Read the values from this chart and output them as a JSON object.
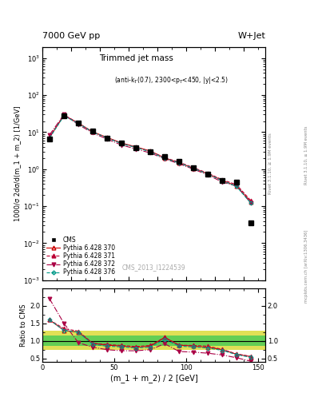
{
  "title_top": "7000 GeV pp",
  "title_right": "W+Jet",
  "ylabel_main": "1000/σ 2dσ/d(m_1 + m_2) [1/GeV]",
  "ylabel_ratio": "Ratio to CMS",
  "xlabel": "(m_1 + m_2) / 2 [GeV]",
  "watermark": "CMS_2013_I1224539",
  "rivet_label": "Rivet 3.1.10, ≥ 1.9M events",
  "mcplots_label": "mcplots.cern.ch [arXiv:1306.3436]",
  "xlim": [
    0,
    155
  ],
  "ylim_main": [
    0.001,
    2000
  ],
  "ylim_ratio": [
    0.4,
    2.5
  ],
  "x_cms": [
    5,
    15,
    25,
    35,
    45,
    55,
    65,
    75,
    85,
    95,
    105,
    115,
    125,
    135,
    145
  ],
  "y_cms": [
    6.5,
    28.0,
    18.0,
    10.5,
    7.0,
    5.0,
    3.8,
    3.0,
    2.2,
    1.6,
    1.1,
    0.75,
    0.5,
    0.45,
    0.035
  ],
  "x_p370": [
    5,
    15,
    25,
    35,
    45,
    55,
    65,
    75,
    85,
    95,
    105,
    115,
    125,
    135,
    145
  ],
  "y_p370": [
    7.2,
    28.5,
    17.5,
    10.2,
    7.2,
    5.1,
    4.0,
    3.1,
    2.0,
    1.5,
    1.05,
    0.75,
    0.5,
    0.35,
    0.13
  ],
  "ratio_p370": [
    1.6,
    1.3,
    1.25,
    0.93,
    0.88,
    0.85,
    0.82,
    0.85,
    1.1,
    0.88,
    0.85,
    0.82,
    0.75,
    0.62,
    0.55
  ],
  "x_p371": [
    5,
    15,
    25,
    35,
    45,
    55,
    65,
    75,
    85,
    95,
    105,
    115,
    125,
    135,
    145
  ],
  "y_p371": [
    7.5,
    29.0,
    17.8,
    10.0,
    7.1,
    5.0,
    3.9,
    3.05,
    2.05,
    1.55,
    1.1,
    0.78,
    0.52,
    0.38,
    0.14
  ],
  "ratio_p371": [
    1.6,
    1.35,
    1.28,
    0.93,
    0.9,
    0.87,
    0.84,
    0.87,
    1.1,
    0.88,
    0.87,
    0.85,
    0.76,
    0.63,
    0.56
  ],
  "x_p372": [
    5,
    15,
    25,
    35,
    45,
    55,
    65,
    75,
    85,
    95,
    105,
    115,
    125,
    135,
    145
  ],
  "y_p372": [
    8.5,
    30.0,
    16.0,
    9.5,
    6.5,
    4.5,
    3.5,
    2.75,
    1.9,
    1.4,
    1.0,
    0.7,
    0.45,
    0.35,
    0.12
  ],
  "ratio_p372": [
    2.2,
    1.5,
    0.95,
    0.82,
    0.75,
    0.72,
    0.72,
    0.75,
    0.92,
    0.7,
    0.68,
    0.65,
    0.6,
    0.52,
    0.42
  ],
  "x_p376": [
    5,
    15,
    25,
    35,
    45,
    55,
    65,
    75,
    85,
    95,
    105,
    115,
    125,
    135,
    145
  ],
  "y_p376": [
    7.0,
    27.5,
    17.2,
    10.0,
    7.0,
    4.9,
    3.85,
    2.95,
    1.95,
    1.48,
    1.05,
    0.74,
    0.49,
    0.34,
    0.12
  ],
  "ratio_p376": [
    1.6,
    1.3,
    1.25,
    0.9,
    0.85,
    0.83,
    0.8,
    0.82,
    1.05,
    0.85,
    0.83,
    0.8,
    0.73,
    0.61,
    0.53
  ],
  "band_edges": [
    0,
    10,
    20,
    30,
    40,
    50,
    60,
    70,
    80,
    90,
    100,
    110,
    120,
    130,
    140,
    155
  ],
  "yellow_lo": [
    0.75,
    0.75,
    0.75,
    0.75,
    0.75,
    0.75,
    0.75,
    0.75,
    0.75,
    0.75,
    0.75,
    0.75,
    0.75,
    0.75,
    0.75
  ],
  "yellow_hi": [
    1.3,
    1.3,
    1.3,
    1.3,
    1.3,
    1.3,
    1.3,
    1.3,
    1.3,
    1.3,
    1.3,
    1.3,
    1.3,
    1.3,
    1.3
  ],
  "green_lo": [
    0.85,
    0.85,
    0.85,
    0.85,
    0.85,
    0.85,
    0.85,
    0.85,
    0.85,
    0.85,
    0.85,
    0.85,
    0.85,
    0.85,
    0.85
  ],
  "green_hi": [
    1.15,
    1.15,
    1.15,
    1.15,
    1.15,
    1.15,
    1.15,
    1.15,
    1.15,
    1.15,
    1.15,
    1.15,
    1.15,
    1.15,
    1.15
  ],
  "color_p370": "#cc0000",
  "color_p371": "#bb0033",
  "color_p372": "#aa0044",
  "color_p376": "#009988",
  "color_cms": "#000000",
  "color_inner_band": "#55cc55",
  "color_outer_band": "#dddd44",
  "bg_color": "#ffffff"
}
